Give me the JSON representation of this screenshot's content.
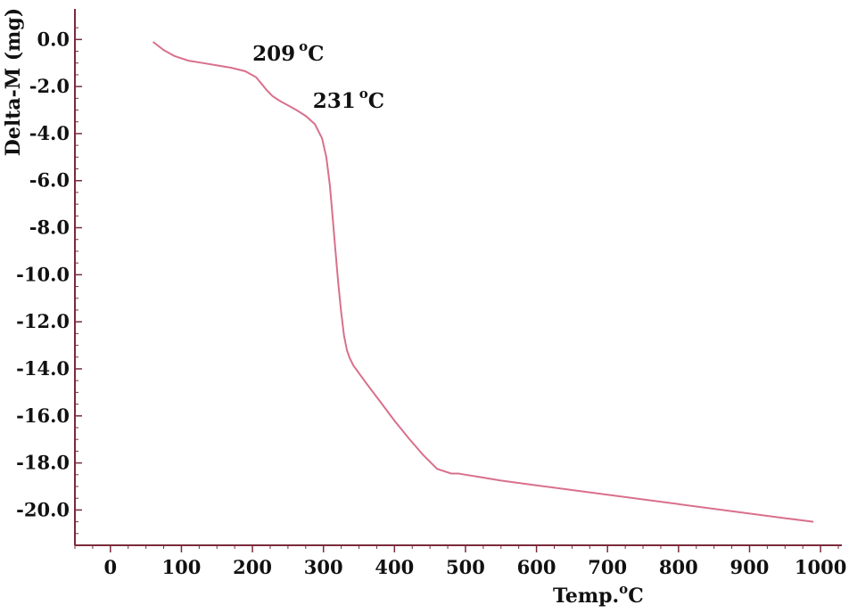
{
  "chart_data": {
    "type": "line",
    "title": "",
    "xlabel": "Temp.",
    "xlabel_sup": "o",
    "xlabel_unit": "C",
    "ylabel": "Delta-M (mg)",
    "xlim": [
      -50,
      1030
    ],
    "ylim": [
      -21.5,
      1.3
    ],
    "xticks": [
      0,
      100,
      200,
      300,
      400,
      500,
      600,
      700,
      800,
      900,
      1000
    ],
    "xtick_labels": [
      "0",
      "100",
      "200",
      "300",
      "400",
      "500",
      "600",
      "700",
      "800",
      "900",
      "1000"
    ],
    "yticks": [
      0,
      -2,
      -4,
      -6,
      -8,
      -10,
      -12,
      -14,
      -16,
      -18,
      -20
    ],
    "ytick_labels": [
      "0.0",
      "-2.0",
      "-4.0",
      "-6.0",
      "-8.0",
      "-10.0",
      "-12.0",
      "-14.0",
      "-16.0",
      "-18.0",
      "-20.0"
    ],
    "grid": false,
    "line_color": "#d9708c",
    "axis_color": "#7a2a3a",
    "series": [
      {
        "x": [
          60,
          75,
          90,
          110,
          130,
          150,
          170,
          190,
          205,
          212,
          220,
          228,
          238,
          250,
          262,
          275,
          288,
          298,
          304,
          309,
          313,
          317,
          321,
          325,
          329,
          333,
          337,
          342,
          360,
          380,
          400,
          420,
          440,
          460,
          480,
          490,
          500,
          520,
          550,
          600,
          650,
          700,
          750,
          800,
          850,
          900,
          950,
          990
        ],
        "y": [
          -0.1,
          -0.45,
          -0.7,
          -0.9,
          -1.0,
          -1.1,
          -1.2,
          -1.35,
          -1.6,
          -1.85,
          -2.15,
          -2.4,
          -2.6,
          -2.8,
          -3.0,
          -3.25,
          -3.6,
          -4.2,
          -5.0,
          -6.2,
          -7.6,
          -9.0,
          -10.4,
          -11.6,
          -12.6,
          -13.2,
          -13.55,
          -13.85,
          -14.6,
          -15.4,
          -16.2,
          -16.95,
          -17.65,
          -18.25,
          -18.45,
          -18.45,
          -18.5,
          -18.6,
          -18.75,
          -18.95,
          -19.15,
          -19.35,
          -19.55,
          -19.75,
          -19.95,
          -20.15,
          -20.35,
          -20.5
        ]
      }
    ],
    "annotations": [
      {
        "value": "209",
        "sup": "o",
        "unit": "C",
        "x": 200,
        "y": -0.9
      },
      {
        "value": "231",
        "sup": "o",
        "unit": "C",
        "x": 285,
        "y": -2.9
      }
    ]
  }
}
